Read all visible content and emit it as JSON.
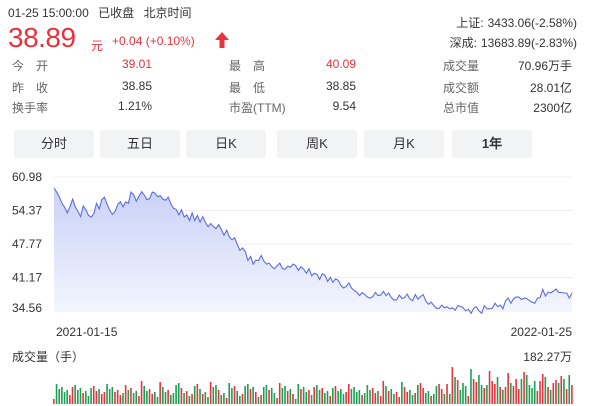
{
  "header": {
    "datetime": "01-25 15:00:00",
    "status": "已收盘",
    "timezone": "北京时间",
    "price": "38.89",
    "unit": "元",
    "change": "+0.04 (+0.10%)"
  },
  "indices": [
    {
      "label": "上证:",
      "value": "3433.06(-2.58%)"
    },
    {
      "label": "深成:",
      "value": "13683.89(-2.83%)"
    }
  ],
  "quote": {
    "rows": [
      [
        {
          "label": "今　开",
          "value": "39.01",
          "red": true
        },
        {
          "label": "最　高",
          "value": "40.09",
          "red": true
        },
        {
          "label": "成交量",
          "value": "70.96万手",
          "red": false
        }
      ],
      [
        {
          "label": "昨　收",
          "value": "38.85",
          "red": false
        },
        {
          "label": "最　低",
          "value": "38.85",
          "red": false
        },
        {
          "label": "成交额",
          "value": "28.01亿",
          "red": false
        }
      ],
      [
        {
          "label": "换手率",
          "value": "1.21%",
          "red": false
        },
        {
          "label": "市盈(TTM)",
          "value": "9.54",
          "red": false
        },
        {
          "label": "总市值",
          "value": "2300亿",
          "red": false
        }
      ]
    ]
  },
  "tabs": [
    "分时",
    "五日",
    "日K",
    "周K",
    "月K",
    "1年"
  ],
  "active_tab": "1年",
  "volume": {
    "label": "成交量（手）",
    "max_label": "182.27万"
  },
  "colors": {
    "up": "#e8323c",
    "down": "#1aa053",
    "line": "#5b6ee1",
    "fill": "#dfe4fa"
  },
  "chart_data": {
    "type": "area",
    "x_start": "2021-01-15",
    "x_end": "2022-01-25",
    "y_ticks": [
      "60.98",
      "54.37",
      "47.77",
      "41.17",
      "34.56"
    ],
    "ylim": [
      34.56,
      60.98
    ],
    "grid": true,
    "values": [
      58.8,
      58.0,
      57.1,
      55.8,
      55.0,
      53.9,
      55.1,
      56.6,
      55.1,
      54.2,
      53.2,
      55.3,
      54.5,
      53.4,
      53.1,
      53.7,
      55.8,
      54.7,
      56.5,
      57.0,
      55.6,
      54.4,
      53.6,
      54.2,
      55.6,
      56.1,
      55.1,
      56.1,
      55.8,
      58.0,
      57.5,
      56.2,
      57.2,
      58.1,
      57.4,
      56.5,
      56.7,
      58.0,
      57.8,
      57.1,
      57.3,
      56.6,
      56.4,
      57.0,
      55.7,
      54.8,
      54.6,
      53.5,
      54.5,
      53.1,
      53.5,
      52.4,
      53.9,
      52.4,
      53.4,
      52.1,
      53.2,
      52.0,
      51.2,
      51.8,
      51.2,
      50.8,
      51.6,
      50.6,
      49.5,
      50.5,
      49.2,
      48.6,
      49.0,
      47.7,
      46.5,
      47.0,
      46.3,
      44.5,
      45.3,
      43.8,
      44.6,
      44.5,
      45.5,
      44.4,
      43.8,
      44.0,
      43.3,
      42.9,
      43.5,
      44.0,
      42.9,
      42.8,
      43.4,
      43.2,
      43.8,
      43.5,
      42.6,
      43.3,
      42.8,
      42.0,
      42.9,
      41.5,
      42.0,
      41.8,
      40.8,
      41.9,
      41.6,
      40.4,
      41.2,
      40.2,
      40.9,
      40.6,
      39.6,
      39.1,
      39.4,
      40.1,
      39.1,
      38.6,
      38.3,
      37.6,
      38.2,
      37.8,
      37.3,
      37.1,
      37.4,
      38.2,
      37.6,
      37.7,
      38.4,
      37.6,
      38.1,
      37.2,
      36.7,
      36.8,
      37.7,
      37.0,
      37.2,
      37.9,
      36.9,
      36.6,
      37.8,
      36.9,
      37.4,
      37.8,
      36.5,
      35.9,
      36.3,
      35.6,
      35.1,
      35.1,
      35.7,
      35.2,
      35.4,
      35.0,
      35.2,
      34.7,
      35.6,
      35.5,
      35.2,
      34.6,
      34.9,
      34.1,
      35.1,
      35.4,
      34.6,
      34.1,
      35.6,
      35.0,
      35.0,
      35.1,
      36.1,
      35.4,
      35.7,
      35.0,
      36.6,
      37.1,
      36.1,
      37.0,
      37.3,
      37.3,
      36.8,
      37.1,
      37.0,
      36.6,
      36.3,
      36.1,
      37.1,
      37.2,
      38.8,
      37.5,
      38.3,
      38.1,
      38.5,
      38.9,
      38.2,
      38.2,
      38.1,
      38.1,
      37.1,
      38.1
    ]
  }
}
